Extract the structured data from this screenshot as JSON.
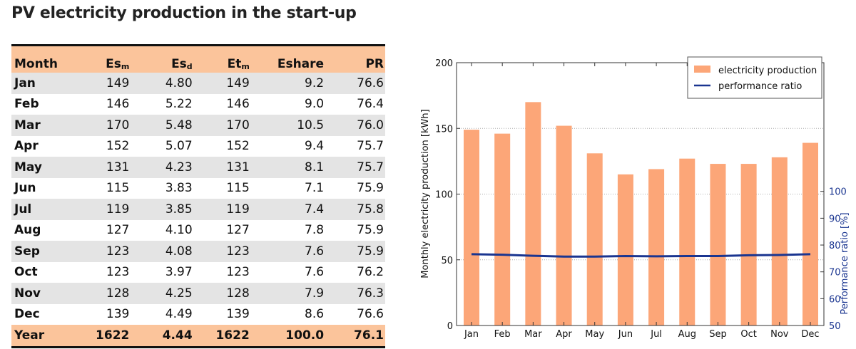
{
  "title": "PV electricity production in the start-up",
  "table": {
    "headers": [
      {
        "main": "Month",
        "sub": ""
      },
      {
        "main": "Es",
        "sub": "m"
      },
      {
        "main": "Es",
        "sub": "d"
      },
      {
        "main": "Et",
        "sub": "m"
      },
      {
        "main": "Eshare",
        "sub": ""
      },
      {
        "main": "PR",
        "sub": ""
      }
    ],
    "rows": [
      [
        "Jan",
        "149",
        "4.80",
        "149",
        "9.2",
        "76.6"
      ],
      [
        "Feb",
        "146",
        "5.22",
        "146",
        "9.0",
        "76.4"
      ],
      [
        "Mar",
        "170",
        "5.48",
        "170",
        "10.5",
        "76.0"
      ],
      [
        "Apr",
        "152",
        "5.07",
        "152",
        "9.4",
        "75.7"
      ],
      [
        "May",
        "131",
        "4.23",
        "131",
        "8.1",
        "75.7"
      ],
      [
        "Jun",
        "115",
        "3.83",
        "115",
        "7.1",
        "75.9"
      ],
      [
        "Jul",
        "119",
        "3.85",
        "119",
        "7.4",
        "75.8"
      ],
      [
        "Aug",
        "127",
        "4.10",
        "127",
        "7.8",
        "75.9"
      ],
      [
        "Sep",
        "123",
        "4.08",
        "123",
        "7.6",
        "75.9"
      ],
      [
        "Oct",
        "123",
        "3.97",
        "123",
        "7.6",
        "76.2"
      ],
      [
        "Nov",
        "128",
        "4.25",
        "128",
        "7.9",
        "76.3"
      ],
      [
        "Dec",
        "139",
        "4.49",
        "139",
        "8.6",
        "76.6"
      ]
    ],
    "total": [
      "Year",
      "1622",
      "4.44",
      "1622",
      "100.0",
      "76.1"
    ]
  },
  "chart_data": {
    "type": "bar",
    "categories": [
      "Jan",
      "Feb",
      "Mar",
      "Apr",
      "May",
      "Jun",
      "Jul",
      "Aug",
      "Sep",
      "Oct",
      "Nov",
      "Dec"
    ],
    "series": [
      {
        "name": "electricity production",
        "type": "bar",
        "axis": "left",
        "color": "#fca678",
        "values": [
          149,
          146,
          170,
          152,
          131,
          115,
          119,
          127,
          123,
          123,
          128,
          139
        ]
      },
      {
        "name": "performance ratio",
        "type": "line",
        "axis": "right",
        "color": "#1a3590",
        "values": [
          76.6,
          76.4,
          76.0,
          75.7,
          75.7,
          75.9,
          75.8,
          75.9,
          75.9,
          76.2,
          76.3,
          76.6
        ]
      }
    ],
    "ylabel": "Monthly electricity production [kWh]",
    "ylabel_right": "Performance ratio [%]",
    "ylim": [
      0,
      200
    ],
    "yticks": [
      0,
      50,
      100,
      150,
      200
    ],
    "ylim_right": [
      50,
      148
    ],
    "yticks_right": [
      50,
      60,
      70,
      80,
      90,
      100
    ],
    "right_axis_color": "#1a3590",
    "grid": "horizontal dotted",
    "legend_position": "top-right"
  }
}
